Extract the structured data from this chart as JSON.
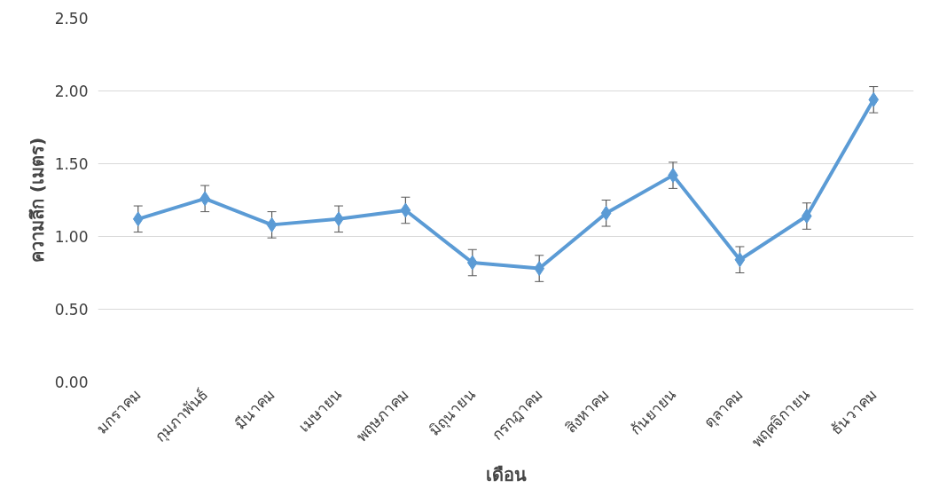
{
  "chart_data": {
    "type": "line",
    "xlabel": "เดือน",
    "ylabel": "ความลึก (เมตร)",
    "categories": [
      "มกราคม",
      "กุมภาพันธ์",
      "มีนาคม",
      "เมษายน",
      "พฤษภาคม",
      "มิถุนายน",
      "กรกฎาคม",
      "สิงหาคม",
      "กันยายน",
      "ตุลาคม",
      "พฤศจิกายน",
      "ธันวาคม"
    ],
    "series": [
      {
        "color": "#5b9bd5",
        "values": [
          1.12,
          1.26,
          1.08,
          1.12,
          1.18,
          0.82,
          0.78,
          1.16,
          1.42,
          0.84,
          1.14,
          1.94
        ],
        "errors": [
          0.09,
          0.09,
          0.09,
          0.09,
          0.09,
          0.09,
          0.09,
          0.09,
          0.09,
          0.09,
          0.09,
          0.09
        ]
      }
    ],
    "ylim": [
      0,
      2.5
    ],
    "yticks": [
      {
        "value": 0,
        "label": "0.00"
      },
      {
        "value": 0.5,
        "label": "0.50"
      },
      {
        "value": 1,
        "label": "1.00"
      },
      {
        "value": 1.5,
        "label": "1.50"
      },
      {
        "value": 2,
        "label": "2.00"
      },
      {
        "value": 2.5,
        "label": "2.50"
      }
    ],
    "grid": "y",
    "marker": "diamond",
    "line_style": "solid"
  }
}
